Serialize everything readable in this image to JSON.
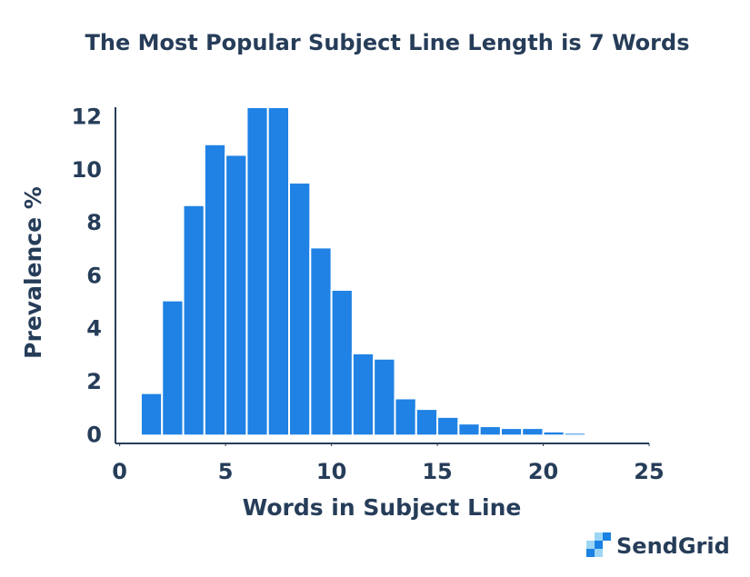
{
  "chart_data": {
    "type": "histogram",
    "title": "The Most Popular Subject Line Length is 7 Words",
    "xlabel": "Words in Subject Line",
    "ylabel": "Prevalence %",
    "logo_text": "SendGrid",
    "bins": [
      0,
      1,
      2,
      3,
      4,
      5,
      6,
      7,
      8,
      9,
      10,
      11,
      12,
      13,
      14,
      15,
      16,
      17,
      18,
      19,
      20,
      21,
      22,
      23,
      24,
      25
    ],
    "values": [
      0.05,
      1.6,
      5.1,
      8.7,
      11.0,
      10.6,
      12.4,
      12.4,
      9.55,
      7.1,
      5.5,
      3.1,
      2.9,
      1.4,
      1.0,
      0.7,
      0.45,
      0.35,
      0.28,
      0.28,
      0.15,
      0.1,
      0.05,
      0.03,
      0.02
    ],
    "color": "#1f82e4",
    "xlim": [
      -0.2,
      25
    ],
    "ylim": [
      -0.3,
      12.4
    ],
    "xticks": [
      0,
      5,
      10,
      15,
      20,
      25
    ],
    "yticks": [
      0,
      2,
      4,
      6,
      8,
      10,
      12
    ]
  }
}
